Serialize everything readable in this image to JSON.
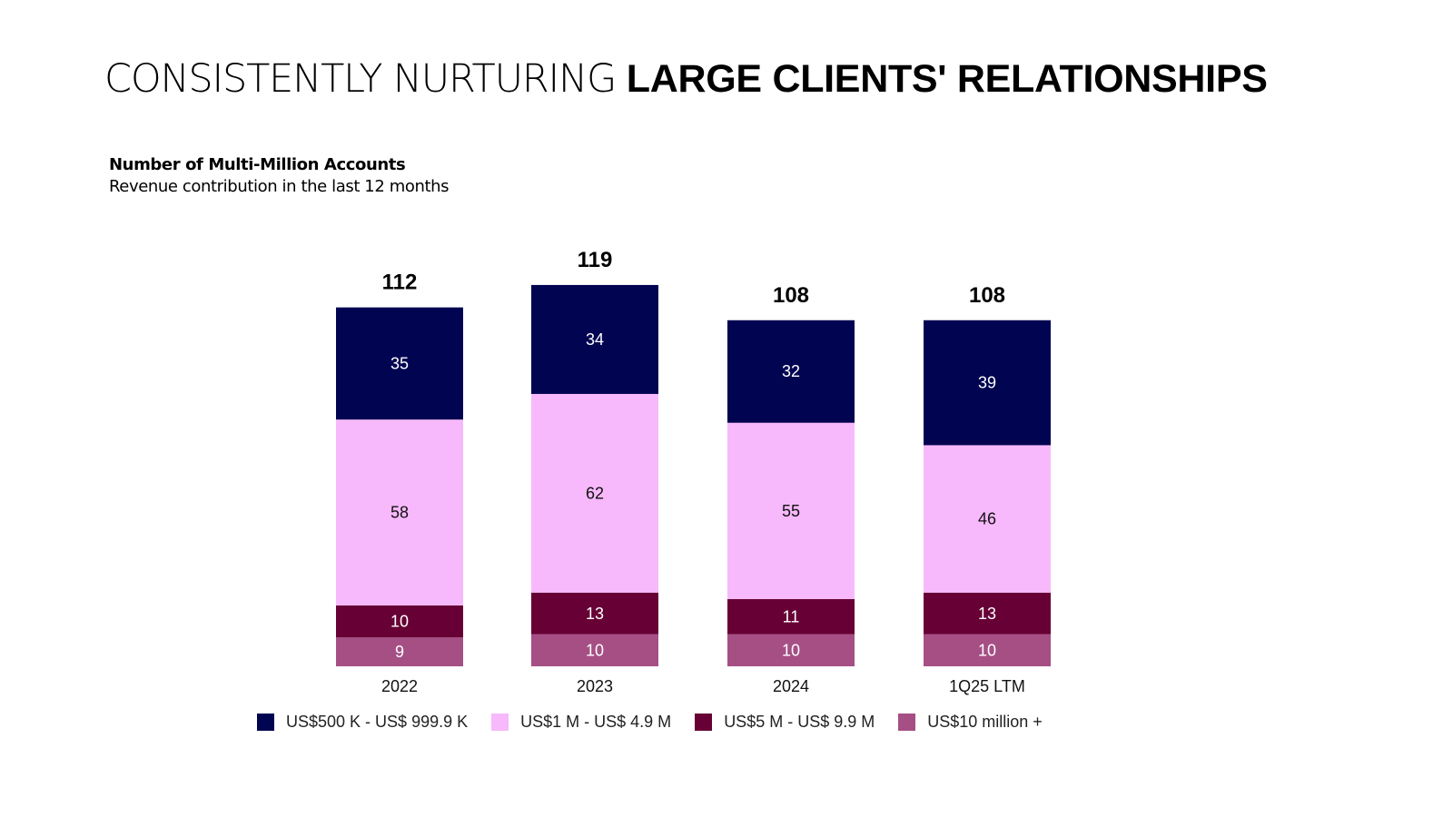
{
  "page": {
    "title_light": "CONSISTENTLY NURTURING",
    "title_bold": "LARGE CLIENTS' RELATIONSHIPS"
  },
  "chart_data": {
    "type": "bar",
    "stacked": true,
    "title": "Number of Multi-Million Accounts",
    "subtitle": "Revenue contribution in the last 12 months",
    "categories": [
      "2022",
      "2023",
      "2024",
      "1Q25 LTM"
    ],
    "totals": [
      112,
      119,
      108,
      108
    ],
    "series": [
      {
        "name": "US$10 million +",
        "color": "#a54f85",
        "label_color": "#ffffff",
        "values": [
          9,
          10,
          10,
          10
        ]
      },
      {
        "name": "US$5 M - US$ 9.9 M",
        "color": "#670035",
        "label_color": "#ffffff",
        "values": [
          10,
          13,
          11,
          13
        ]
      },
      {
        "name": "US$1 M - US$ 4.9 M",
        "color": "#f7b9fb",
        "label_color": "#111111",
        "values": [
          58,
          62,
          55,
          46
        ]
      },
      {
        "name": "US$500 K - US$ 999.9 K",
        "color": "#010451",
        "label_color": "#ffffff",
        "values": [
          35,
          34,
          32,
          39
        ]
      }
    ],
    "legend_order": [
      3,
      2,
      1,
      0
    ],
    "legend_position": "bottom",
    "grid": false
  }
}
